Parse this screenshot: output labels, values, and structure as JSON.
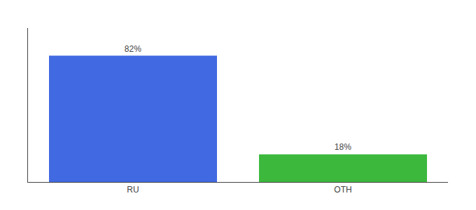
{
  "chart_data": {
    "type": "bar",
    "categories": [
      "RU",
      "OTH"
    ],
    "values": [
      82,
      18
    ],
    "value_labels": [
      "82%",
      "18%"
    ],
    "colors": [
      "#4169E1",
      "#3CB83C"
    ],
    "ylim": [
      0,
      100
    ],
    "data_labels": true,
    "tick_labels": "x",
    "grid": false
  }
}
